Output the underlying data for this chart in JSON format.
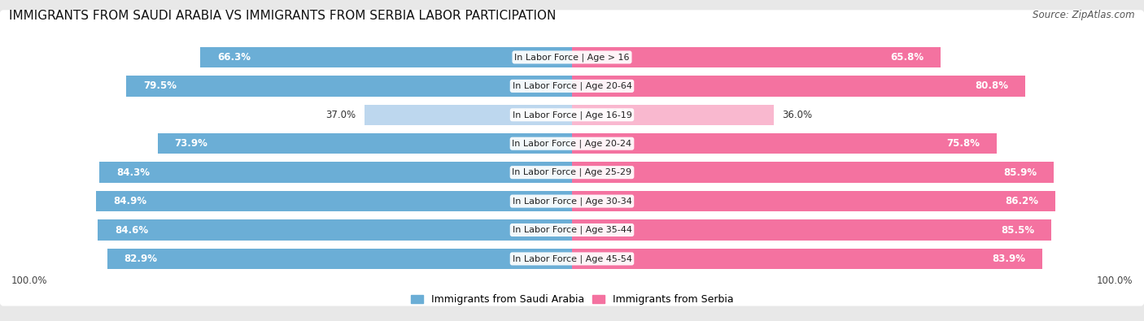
{
  "title": "IMMIGRANTS FROM SAUDI ARABIA VS IMMIGRANTS FROM SERBIA LABOR PARTICIPATION",
  "source": "Source: ZipAtlas.com",
  "categories": [
    "In Labor Force | Age > 16",
    "In Labor Force | Age 20-64",
    "In Labor Force | Age 16-19",
    "In Labor Force | Age 20-24",
    "In Labor Force | Age 25-29",
    "In Labor Force | Age 30-34",
    "In Labor Force | Age 35-44",
    "In Labor Force | Age 45-54"
  ],
  "saudi_values": [
    66.3,
    79.5,
    37.0,
    73.9,
    84.3,
    84.9,
    84.6,
    82.9
  ],
  "serbia_values": [
    65.8,
    80.8,
    36.0,
    75.8,
    85.9,
    86.2,
    85.5,
    83.9
  ],
  "saudi_color": "#6BAED6",
  "saudi_color_light": "#BDD7EE",
  "serbia_color": "#F472A0",
  "serbia_color_light": "#F9B8CF",
  "label_saudi": "Immigrants from Saudi Arabia",
  "label_serbia": "Immigrants from Serbia",
  "bg_color": "#E8E8E8",
  "row_bg": "#FFFFFF",
  "title_fontsize": 11,
  "source_fontsize": 8.5,
  "bar_label_fontsize": 8.5,
  "cat_label_fontsize": 8,
  "legend_fontsize": 9,
  "light_threshold": 50
}
